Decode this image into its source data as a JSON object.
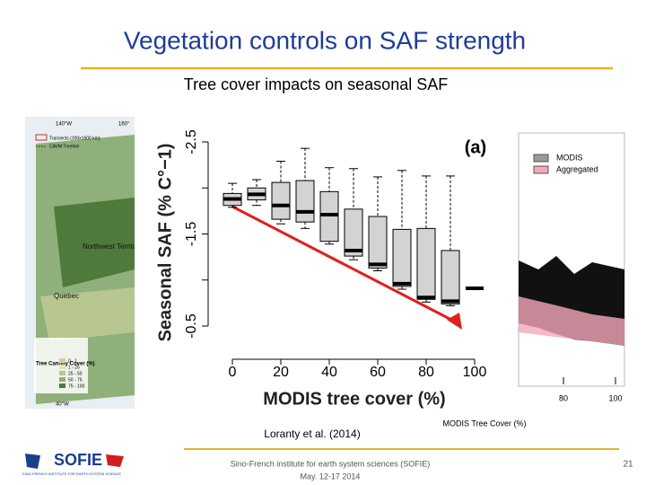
{
  "slide": {
    "title": "Vegetation controls on SAF strength",
    "subtitle": "Tree cover impacts on seasonal SAF",
    "citation": "Loranty et al. (2014)",
    "footer": {
      "institute": "Sino-French institute for earth system sciences (SOFIE)",
      "date": "May. 12-17 2014",
      "page": "21",
      "logo": "SOFIE",
      "logo_caption": "SINO-FRENCH INSTITUTE FOR EARTH SYSTEM SCIENCE"
    },
    "map": {
      "coords": [
        "140°W",
        "160°",
        "40°W"
      ],
      "legend": [
        "Transects (200x1600 km)",
        "CAVM Treeline"
      ],
      "places": [
        "Northwest Territories",
        "Quebec"
      ],
      "canopy_title": "Tree Canopy Cover (%)",
      "canopy_classes": [
        "0 - 1",
        "1 - 25",
        "25 - 50",
        "50 - 75",
        "75 - 100"
      ]
    },
    "right_panel": {
      "legend": [
        "MODIS",
        "Aggregated"
      ],
      "xticks": [
        80,
        100
      ],
      "xlabel": "MODIS Tree Cover (%)"
    }
  },
  "chart_data": {
    "type": "box",
    "panel_label": "(a)",
    "xlabel": "MODIS tree cover (%)",
    "ylabel": "Seasonal SAF (% C°−1)",
    "x": [
      0,
      10,
      20,
      30,
      40,
      50,
      60,
      70,
      80,
      90,
      100
    ],
    "low": [
      -2.05,
      -2.09,
      -2.29,
      -2.43,
      -2.22,
      -2.21,
      -2.12,
      -2.19,
      -2.13,
      -2.13,
      null
    ],
    "q1": [
      -1.94,
      -2.0,
      -2.06,
      -2.08,
      -1.96,
      -1.77,
      -1.69,
      -1.55,
      -1.56,
      -1.32,
      null
    ],
    "median": [
      -1.88,
      -1.93,
      -1.81,
      -1.74,
      -1.71,
      -1.32,
      -1.17,
      -0.96,
      -0.81,
      -0.77,
      -0.91
    ],
    "q3": [
      -1.81,
      -1.87,
      -1.66,
      -1.63,
      -1.42,
      -1.26,
      -1.13,
      -0.93,
      -0.79,
      -0.74,
      null
    ],
    "high": [
      -1.79,
      -1.81,
      -1.61,
      -1.56,
      -1.39,
      -1.22,
      -1.1,
      -0.9,
      -0.76,
      -0.72,
      null
    ],
    "box_color": "#d3d3d3",
    "xlim": [
      0,
      100
    ],
    "xticks": [
      0,
      20,
      40,
      60,
      80,
      100
    ],
    "ylim": [
      -2.5,
      -0.5
    ],
    "yticks": [
      -2.5,
      -1.5,
      -0.5
    ],
    "minor_yticks": [
      -2,
      -1
    ],
    "y_inverted": true
  }
}
